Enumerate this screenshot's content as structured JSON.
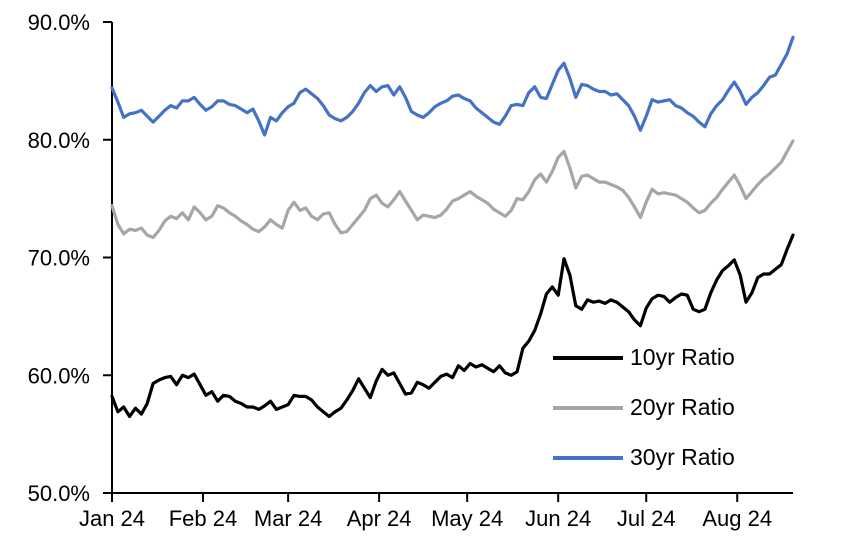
{
  "chart_data": {
    "type": "line",
    "title": "",
    "xlabel": "",
    "ylabel": "",
    "grid": false,
    "legend_position": "inside-lower-right",
    "y_axis": {
      "min": 50,
      "max": 90,
      "tick_values": [
        50,
        60,
        70,
        80,
        90
      ],
      "tick_labels": [
        "50.0%",
        "60.0%",
        "70.0%",
        "80.0%",
        "90.0%"
      ]
    },
    "x_axis": {
      "max_day": 232,
      "ticks": [
        {
          "label": "Jan 24",
          "day": 0
        },
        {
          "label": "Feb 24",
          "day": 31
        },
        {
          "label": "Mar 24",
          "day": 60
        },
        {
          "label": "Apr 24",
          "day": 91
        },
        {
          "label": "May 24",
          "day": 121
        },
        {
          "label": "Jun 24",
          "day": 152
        },
        {
          "label": "Jul 24",
          "day": 182
        },
        {
          "label": "Aug 24",
          "day": 213
        }
      ]
    },
    "series": [
      {
        "name": "10yr Ratio",
        "color": "#000000",
        "day_step": 2,
        "values": [
          58.2,
          56.9,
          57.3,
          56.5,
          57.2,
          56.7,
          57.6,
          59.3,
          59.6,
          59.8,
          59.9,
          59.2,
          60.0,
          59.8,
          60.1,
          59.2,
          58.3,
          58.6,
          57.8,
          58.3,
          58.2,
          57.8,
          57.6,
          57.3,
          57.3,
          57.1,
          57.4,
          57.8,
          57.1,
          57.3,
          57.5,
          58.3,
          58.2,
          58.2,
          57.9,
          57.3,
          56.9,
          56.5,
          56.9,
          57.2,
          57.9,
          58.7,
          59.7,
          58.9,
          58.1,
          59.5,
          60.5,
          60.0,
          60.2,
          59.3,
          58.4,
          58.5,
          59.4,
          59.2,
          58.9,
          59.4,
          59.9,
          60.1,
          59.8,
          60.8,
          60.4,
          61.0,
          60.7,
          60.9,
          60.6,
          60.3,
          60.8,
          60.2,
          60.0,
          60.3,
          62.3,
          62.9,
          63.8,
          65.2,
          66.9,
          67.5,
          66.8,
          69.9,
          68.5,
          65.9,
          65.6,
          66.4,
          66.2,
          66.3,
          66.1,
          66.4,
          66.2,
          65.8,
          65.4,
          64.7,
          64.2,
          65.7,
          66.5,
          66.8,
          66.7,
          66.2,
          66.6,
          66.9,
          66.8,
          65.6,
          65.4,
          65.6,
          67.0,
          68.1,
          68.9,
          69.3,
          69.8,
          68.5,
          66.2,
          67.0,
          68.3,
          68.6,
          68.6,
          69.0,
          69.4,
          70.7,
          71.9
        ]
      },
      {
        "name": "20yr Ratio",
        "color": "#A6A6A6",
        "day_step": 2,
        "values": [
          74.4,
          72.8,
          72.0,
          72.4,
          72.3,
          72.5,
          71.9,
          71.7,
          72.3,
          73.1,
          73.5,
          73.3,
          73.8,
          73.2,
          74.3,
          73.8,
          73.2,
          73.5,
          74.4,
          74.2,
          73.8,
          73.5,
          73.1,
          72.8,
          72.4,
          72.2,
          72.6,
          73.2,
          72.8,
          72.5,
          74.0,
          74.7,
          74.0,
          74.2,
          73.5,
          73.2,
          73.7,
          73.8,
          72.8,
          72.1,
          72.2,
          72.8,
          73.4,
          74.0,
          75.0,
          75.3,
          74.6,
          74.3,
          74.9,
          75.6,
          74.8,
          74.0,
          73.2,
          73.6,
          73.5,
          73.4,
          73.6,
          74.1,
          74.8,
          75.0,
          75.3,
          75.6,
          75.2,
          74.9,
          74.6,
          74.1,
          73.8,
          73.5,
          74.0,
          75.0,
          74.9,
          75.6,
          76.6,
          77.1,
          76.4,
          77.3,
          78.5,
          79.0,
          77.6,
          75.9,
          76.9,
          77.0,
          76.7,
          76.4,
          76.4,
          76.2,
          76.0,
          75.7,
          75.1,
          74.3,
          73.4,
          74.7,
          75.8,
          75.4,
          75.5,
          75.4,
          75.3,
          75.0,
          74.7,
          74.2,
          73.8,
          74.0,
          74.6,
          75.1,
          75.8,
          76.4,
          77.0,
          76.1,
          75.0,
          75.6,
          76.2,
          76.7,
          77.1,
          77.6,
          78.1,
          79.0,
          79.9
        ]
      },
      {
        "name": "30yr Ratio",
        "color": "#4472C4",
        "day_step": 2,
        "values": [
          84.4,
          83.2,
          81.9,
          82.2,
          82.3,
          82.5,
          82.0,
          81.5,
          82.0,
          82.5,
          82.9,
          82.7,
          83.3,
          83.3,
          83.6,
          83.0,
          82.5,
          82.8,
          83.3,
          83.3,
          83.0,
          82.9,
          82.6,
          82.3,
          82.6,
          81.6,
          80.4,
          81.9,
          81.6,
          82.3,
          82.8,
          83.1,
          84.0,
          84.3,
          83.9,
          83.5,
          82.9,
          82.1,
          81.8,
          81.6,
          81.9,
          82.4,
          83.1,
          84.0,
          84.6,
          84.1,
          84.5,
          84.6,
          83.8,
          84.5,
          83.6,
          82.4,
          82.1,
          81.9,
          82.3,
          82.8,
          83.1,
          83.3,
          83.7,
          83.8,
          83.5,
          83.3,
          82.7,
          82.3,
          81.9,
          81.5,
          81.3,
          82.0,
          82.9,
          83.0,
          82.9,
          84.0,
          84.5,
          83.6,
          83.5,
          84.7,
          85.9,
          86.5,
          85.2,
          83.6,
          84.7,
          84.6,
          84.3,
          84.1,
          84.1,
          83.8,
          83.9,
          83.4,
          82.9,
          82.0,
          80.8,
          82.0,
          83.4,
          83.2,
          83.3,
          83.4,
          82.9,
          82.7,
          82.3,
          82.0,
          81.5,
          81.1,
          82.2,
          82.9,
          83.4,
          84.2,
          84.9,
          84.1,
          83.0,
          83.6,
          84.0,
          84.6,
          85.3,
          85.5,
          86.4,
          87.3,
          88.7
        ]
      }
    ]
  }
}
